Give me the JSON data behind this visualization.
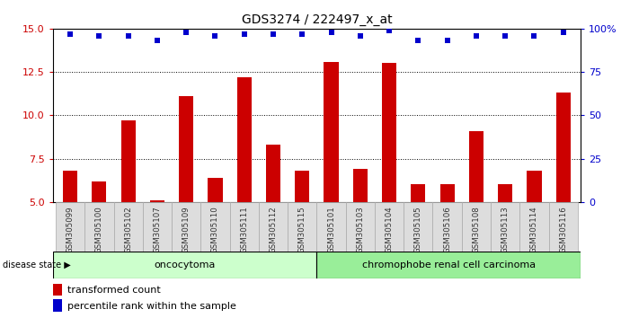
{
  "title": "GDS3274 / 222497_x_at",
  "samples": [
    "GSM305099",
    "GSM305100",
    "GSM305102",
    "GSM305107",
    "GSM305109",
    "GSM305110",
    "GSM305111",
    "GSM305112",
    "GSM305115",
    "GSM305101",
    "GSM305103",
    "GSM305104",
    "GSM305105",
    "GSM305106",
    "GSM305108",
    "GSM305113",
    "GSM305114",
    "GSM305116"
  ],
  "bar_values": [
    6.8,
    6.2,
    9.7,
    5.1,
    11.1,
    6.4,
    12.2,
    8.3,
    6.8,
    13.1,
    6.9,
    13.0,
    6.0,
    6.0,
    9.1,
    6.0,
    6.8,
    11.3
  ],
  "percentile_values": [
    97,
    96,
    96,
    93,
    98,
    96,
    97,
    97,
    97,
    98,
    96,
    99,
    93,
    93,
    96,
    96,
    96,
    98
  ],
  "bar_color": "#cc0000",
  "dot_color": "#0000cc",
  "ylim_left": [
    5,
    15
  ],
  "ylim_right": [
    0,
    100
  ],
  "yticks_left": [
    5,
    7.5,
    10,
    12.5,
    15
  ],
  "yticks_right": [
    0,
    25,
    50,
    75,
    100
  ],
  "group1_label": "oncocytoma",
  "group2_label": "chromophobe renal cell carcinoma",
  "group1_count": 9,
  "group2_count": 9,
  "disease_state_label": "disease state",
  "legend_bar_label": "transformed count",
  "legend_dot_label": "percentile rank within the sample",
  "background_color": "#ffffff",
  "plot_bg_color": "#ffffff",
  "group1_bg": "#ccffcc",
  "group2_bg": "#99ee99",
  "bar_bottom": 5,
  "bar_width": 0.5
}
